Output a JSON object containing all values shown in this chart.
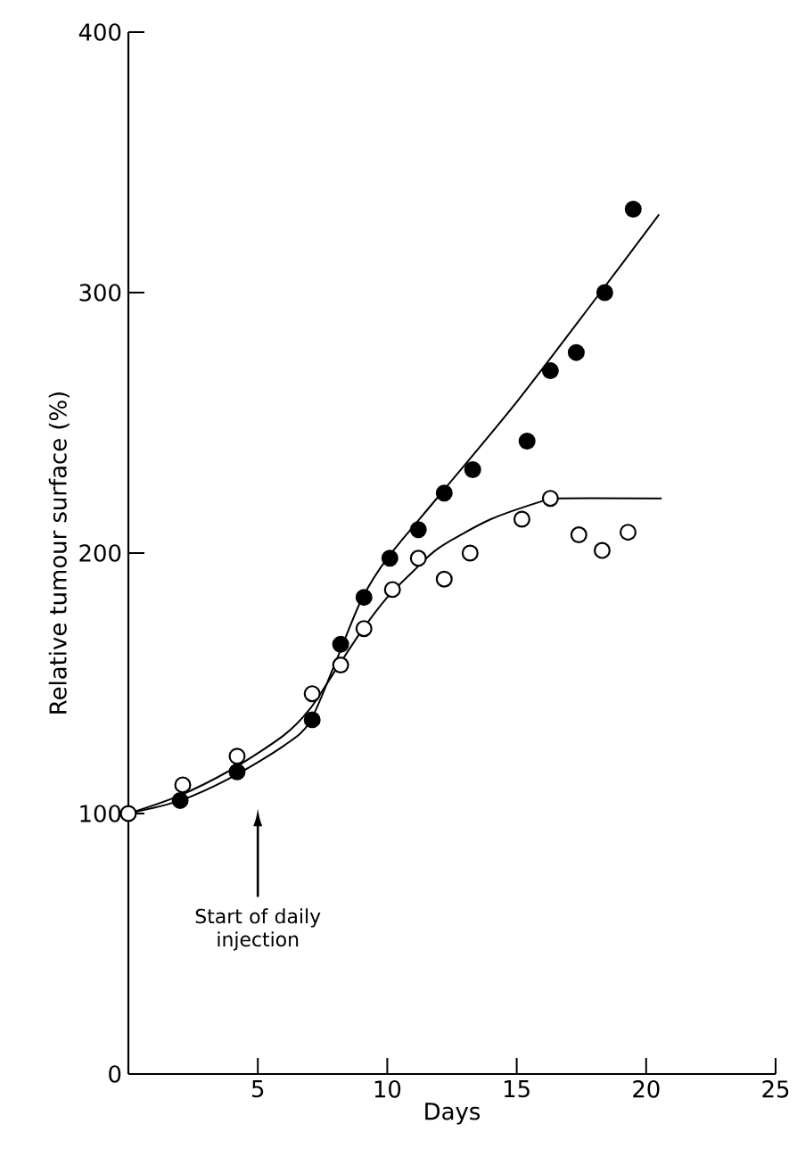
{
  "chart_data": {
    "type": "scatter",
    "xlabel": "Days",
    "ylabel": "Relative tumour surface (%)",
    "xlim": [
      0,
      25
    ],
    "ylim": [
      0,
      400
    ],
    "xticks": [
      5,
      10,
      15,
      20,
      25
    ],
    "yticks": [
      0,
      100,
      200,
      300,
      400
    ],
    "grid": false,
    "marker": "circle",
    "series": [
      {
        "color": "#000000",
        "x": [
          2.0,
          4.2,
          7.1,
          8.2,
          9.1,
          10.1,
          11.2,
          12.2,
          13.3,
          15.4,
          16.3,
          17.3,
          18.4,
          19.5
        ],
        "values": [
          105,
          116,
          136,
          165,
          183,
          198,
          209,
          223,
          232,
          243,
          270,
          277,
          300,
          332
        ]
      },
      {
        "color": "#000000",
        "x": [
          0,
          2.1,
          4.2,
          7.1,
          8.2,
          9.1,
          10.2,
          11.2,
          12.2,
          13.2,
          15.2,
          16.3,
          17.4,
          18.3,
          19.3
        ],
        "values": [
          100,
          111,
          122,
          146,
          157,
          171,
          186,
          198,
          190,
          200,
          213,
          221,
          207,
          201,
          208
        ]
      },
      {
        "type": "line",
        "color": "#000000",
        "marker": "none",
        "line_style": "solid",
        "x": [
          0,
          2,
          4,
          6,
          7,
          8,
          9,
          10,
          12,
          15,
          18,
          20.5
        ],
        "values": [
          100,
          105,
          114,
          126,
          135,
          158,
          182,
          198,
          222,
          258,
          297,
          330
        ]
      },
      {
        "type": "line",
        "color": "#000000",
        "marker": "none",
        "line_style": "solid",
        "x": [
          0,
          2,
          4,
          6,
          7,
          8,
          9,
          10,
          11,
          12,
          14,
          16,
          16.5,
          20.6
        ],
        "values": [
          100,
          107,
          117,
          130,
          140,
          155,
          170,
          183,
          193,
          202,
          213,
          220,
          221,
          221
        ]
      }
    ],
    "annotations": [
      "Start of daily injection"
    ]
  }
}
